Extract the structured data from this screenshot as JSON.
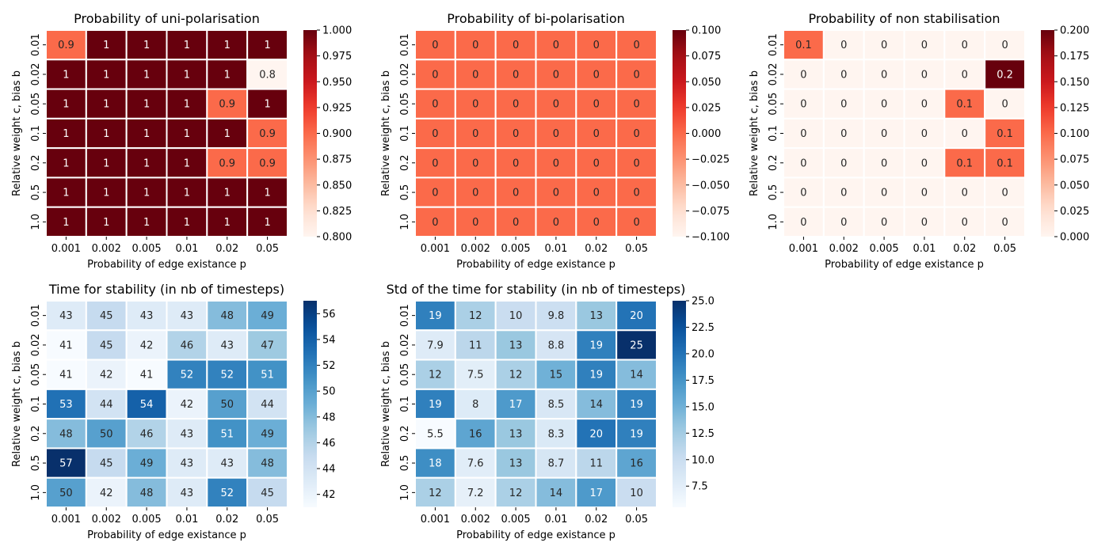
{
  "chart_data": [
    {
      "type": "heatmap",
      "title": "Probability of uni-polarisation",
      "xlabel": "Probability of edge existance p",
      "ylabel": "Relative weight c, bias b",
      "x_categories": [
        "0.001",
        "0.002",
        "0.005",
        "0.01",
        "0.02",
        "0.05"
      ],
      "y_categories": [
        "0.01",
        "0.02",
        "0.05",
        "0.1",
        "0.2",
        "0.5",
        "1.0"
      ],
      "values": [
        [
          0.9,
          1,
          1,
          1,
          1,
          1
        ],
        [
          1,
          1,
          1,
          1,
          1,
          0.8
        ],
        [
          1,
          1,
          1,
          1,
          0.9,
          1
        ],
        [
          1,
          1,
          1,
          1,
          1,
          0.9
        ],
        [
          1,
          1,
          1,
          1,
          0.9,
          0.9
        ],
        [
          1,
          1,
          1,
          1,
          1,
          1
        ],
        [
          1,
          1,
          1,
          1,
          1,
          1
        ]
      ],
      "labels": [
        [
          "0.9",
          "1",
          "1",
          "1",
          "1",
          "1"
        ],
        [
          "1",
          "1",
          "1",
          "1",
          "1",
          "0.8"
        ],
        [
          "1",
          "1",
          "1",
          "1",
          "0.9",
          "1"
        ],
        [
          "1",
          "1",
          "1",
          "1",
          "1",
          "0.9"
        ],
        [
          "1",
          "1",
          "1",
          "1",
          "0.9",
          "0.9"
        ],
        [
          "1",
          "1",
          "1",
          "1",
          "1",
          "1"
        ],
        [
          "1",
          "1",
          "1",
          "1",
          "1",
          "1"
        ]
      ],
      "colormap": "Reds",
      "vmin": 0.8,
      "vmax": 1.0,
      "colorbar_ticks": [
        "0.800",
        "0.825",
        "0.850",
        "0.875",
        "0.900",
        "0.925",
        "0.950",
        "0.975",
        "1.000"
      ]
    },
    {
      "type": "heatmap",
      "title": "Probability of bi-polarisation",
      "xlabel": "Probability of edge existance p",
      "ylabel": "Relative weight c, bias b",
      "x_categories": [
        "0.001",
        "0.002",
        "0.005",
        "0.01",
        "0.02",
        "0.05"
      ],
      "y_categories": [
        "0.01",
        "0.02",
        "0.05",
        "0.1",
        "0.2",
        "0.5",
        "1.0"
      ],
      "values": [
        [
          0,
          0,
          0,
          0,
          0,
          0
        ],
        [
          0,
          0,
          0,
          0,
          0,
          0
        ],
        [
          0,
          0,
          0,
          0,
          0,
          0
        ],
        [
          0,
          0,
          0,
          0,
          0,
          0
        ],
        [
          0,
          0,
          0,
          0,
          0,
          0
        ],
        [
          0,
          0,
          0,
          0,
          0,
          0
        ],
        [
          0,
          0,
          0,
          0,
          0,
          0
        ]
      ],
      "labels": [
        [
          "0",
          "0",
          "0",
          "0",
          "0",
          "0"
        ],
        [
          "0",
          "0",
          "0",
          "0",
          "0",
          "0"
        ],
        [
          "0",
          "0",
          "0",
          "0",
          "0",
          "0"
        ],
        [
          "0",
          "0",
          "0",
          "0",
          "0",
          "0"
        ],
        [
          "0",
          "0",
          "0",
          "0",
          "0",
          "0"
        ],
        [
          "0",
          "0",
          "0",
          "0",
          "0",
          "0"
        ],
        [
          "0",
          "0",
          "0",
          "0",
          "0",
          "0"
        ]
      ],
      "colormap": "Reds",
      "vmin": -0.1,
      "vmax": 0.1,
      "colorbar_ticks": [
        "0.100",
        "0.075",
        "0.050",
        "0.025",
        "0.000",
        "−0.025",
        "−0.050",
        "−0.075",
        "−0.100"
      ]
    },
    {
      "type": "heatmap",
      "title": "Probability of non stabilisation",
      "xlabel": "Probability of edge existance p",
      "ylabel": "Relative weight c, bias b",
      "x_categories": [
        "0.001",
        "0.002",
        "0.005",
        "0.01",
        "0.02",
        "0.05"
      ],
      "y_categories": [
        "0.01",
        "0.02",
        "0.05",
        "0.1",
        "0.2",
        "0.5",
        "1.0"
      ],
      "values": [
        [
          0.1,
          0,
          0,
          0,
          0,
          0
        ],
        [
          0,
          0,
          0,
          0,
          0,
          0.2
        ],
        [
          0,
          0,
          0,
          0,
          0.1,
          0
        ],
        [
          0,
          0,
          0,
          0,
          0,
          0.1
        ],
        [
          0,
          0,
          0,
          0,
          0.1,
          0.1
        ],
        [
          0,
          0,
          0,
          0,
          0,
          0
        ],
        [
          0,
          0,
          0,
          0,
          0,
          0
        ]
      ],
      "labels": [
        [
          "0.1",
          "0",
          "0",
          "0",
          "0",
          "0"
        ],
        [
          "0",
          "0",
          "0",
          "0",
          "0",
          "0.2"
        ],
        [
          "0",
          "0",
          "0",
          "0",
          "0.1",
          "0"
        ],
        [
          "0",
          "0",
          "0",
          "0",
          "0",
          "0.1"
        ],
        [
          "0",
          "0",
          "0",
          "0",
          "0.1",
          "0.1"
        ],
        [
          "0",
          "0",
          "0",
          "0",
          "0",
          "0"
        ],
        [
          "0",
          "0",
          "0",
          "0",
          "0",
          "0"
        ]
      ],
      "colormap": "Reds",
      "vmin": 0.0,
      "vmax": 0.2,
      "colorbar_ticks": [
        "0.200",
        "0.175",
        "0.150",
        "0.125",
        "0.100",
        "0.075",
        "0.050",
        "0.025",
        "0.000"
      ]
    },
    {
      "type": "heatmap",
      "title": "Time for stability (in nb of timesteps)",
      "xlabel": "Probability of edge existance p",
      "ylabel": "Relative weight c, bias b",
      "x_categories": [
        "0.001",
        "0.002",
        "0.005",
        "0.01",
        "0.02",
        "0.05"
      ],
      "y_categories": [
        "0.01",
        "0.02",
        "0.05",
        "0.1",
        "0.2",
        "0.5",
        "1.0"
      ],
      "values": [
        [
          43,
          45,
          43,
          43,
          48,
          49
        ],
        [
          41,
          45,
          42,
          46,
          43,
          47
        ],
        [
          41,
          42,
          41,
          52,
          52,
          51
        ],
        [
          53,
          44,
          54,
          42,
          50,
          44
        ],
        [
          48,
          50,
          46,
          43,
          51,
          49
        ],
        [
          57,
          45,
          49,
          43,
          43,
          48
        ],
        [
          50,
          42,
          48,
          43,
          52,
          45
        ]
      ],
      "labels": [
        [
          "43",
          "45",
          "43",
          "43",
          "48",
          "49"
        ],
        [
          "41",
          "45",
          "42",
          "46",
          "43",
          "47"
        ],
        [
          "41",
          "42",
          "41",
          "52",
          "52",
          "51"
        ],
        [
          "53",
          "44",
          "54",
          "42",
          "50",
          "44"
        ],
        [
          "48",
          "50",
          "46",
          "43",
          "51",
          "49"
        ],
        [
          "57",
          "45",
          "49",
          "43",
          "43",
          "48"
        ],
        [
          "50",
          "42",
          "48",
          "43",
          "52",
          "45"
        ]
      ],
      "colormap": "Blues",
      "vmin": 41,
      "vmax": 57,
      "colorbar_ticks": [
        "56",
        "54",
        "52",
        "50",
        "48",
        "46",
        "44",
        "42"
      ]
    },
    {
      "type": "heatmap",
      "title": "Std of the time for stability (in nb of timesteps)",
      "xlabel": "Probability of edge existance p",
      "ylabel": "Relative weight c, bias b",
      "x_categories": [
        "0.001",
        "0.002",
        "0.005",
        "0.01",
        "0.02",
        "0.05"
      ],
      "y_categories": [
        "0.01",
        "0.02",
        "0.05",
        "0.1",
        "0.2",
        "0.5",
        "1.0"
      ],
      "values": [
        [
          19,
          12,
          10,
          9.8,
          13,
          20
        ],
        [
          7.9,
          11,
          13,
          8.8,
          19,
          25
        ],
        [
          12,
          7.5,
          12,
          15,
          19,
          14
        ],
        [
          19,
          8,
          17,
          8.5,
          14,
          19
        ],
        [
          5.5,
          16,
          13,
          8.3,
          20,
          19
        ],
        [
          18,
          7.6,
          13,
          8.7,
          11,
          16
        ],
        [
          12,
          7.2,
          12,
          14,
          17,
          10
        ]
      ],
      "labels": [
        [
          "19",
          "12",
          "10",
          "9.8",
          "13",
          "20"
        ],
        [
          "7.9",
          "11",
          "13",
          "8.8",
          "19",
          "25"
        ],
        [
          "12",
          "7.5",
          "12",
          "15",
          "19",
          "14"
        ],
        [
          "19",
          "8",
          "17",
          "8.5",
          "14",
          "19"
        ],
        [
          "5.5",
          "16",
          "13",
          "8.3",
          "20",
          "19"
        ],
        [
          "18",
          "7.6",
          "13",
          "8.7",
          "11",
          "16"
        ],
        [
          "12",
          "7.2",
          "12",
          "14",
          "17",
          "10"
        ]
      ],
      "colormap": "Blues",
      "vmin": 5.5,
      "vmax": 25,
      "colorbar_ticks": [
        "25.0",
        "22.5",
        "20.0",
        "17.5",
        "15.0",
        "12.5",
        "10.0",
        "7.5"
      ]
    }
  ]
}
